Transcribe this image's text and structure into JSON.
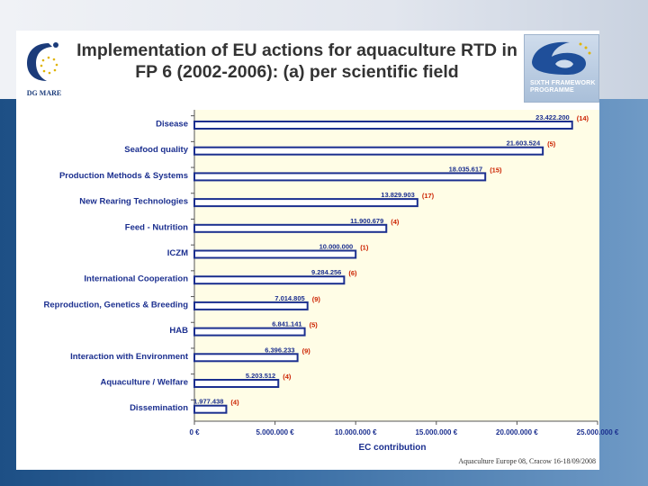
{
  "title": "Implementation of EU actions for aquaculture RTD in FP 6 (2002-2006): (a) per scientific field",
  "logos": {
    "left_text": "DG MARE",
    "right_text_line1": "SIXTH FRAMEWORK",
    "right_text_line2": "PROGRAMME",
    "left_icon": "dg-mare-logo-icon",
    "right_icon": "sixth-framework-logo-icon"
  },
  "footer": "Aquaculture Europe 08, Cracow 16-18/09/2008",
  "colors": {
    "bar_fill": "#ffffff",
    "bar_stroke": "#1b2f8f",
    "value_label": "#1b2f8f",
    "count_label": "#cc2200",
    "plot_bg": "#fffde6"
  },
  "chart_data": {
    "type": "bar",
    "orientation": "horizontal",
    "title": "Implementation of EU actions for aquaculture RTD in FP 6 (2002-2006): (a) per scientific field",
    "xlabel": "EC contribution",
    "ylabel": "",
    "xlim": [
      0,
      25000000
    ],
    "x_ticks": [
      0,
      5000000,
      10000000,
      15000000,
      20000000,
      25000000
    ],
    "x_tick_labels": [
      "0 €",
      "5.000.000 €",
      "10.000.000 €",
      "15.000.000 €",
      "20.000.000 €",
      "25.000.000 €"
    ],
    "grid": false,
    "categories": [
      "Disease",
      "Seafood quality",
      "Production Methods & Systems",
      "New Rearing Technologies",
      "Feed - Nutrition",
      "ICZM",
      "International Cooperation",
      "Reproduction, Genetics & Breeding",
      "HAB",
      "Interaction with Environment",
      "Aquaculture / Welfare",
      "Dissemination"
    ],
    "values": [
      23422200,
      21603524,
      18035617,
      13829903,
      11900679,
      10000000,
      9284256,
      7014805,
      6841141,
      6396233,
      5203512,
      1977438
    ],
    "value_labels": [
      "23.422.200",
      "21.603.524",
      "18.035.617",
      "13.829.903",
      "11.900.679",
      "10.000.000",
      "9.284.256",
      "7.014.805",
      "6.841.141",
      "6.396.233",
      "5.203.512",
      "1.977.438"
    ],
    "count_labels": [
      "(14)",
      "(5)",
      "(15)",
      "(17)",
      "(4)",
      "(1)",
      "(6)",
      "(9)",
      "(5)",
      "(9)",
      "(4)",
      "(4)"
    ]
  }
}
